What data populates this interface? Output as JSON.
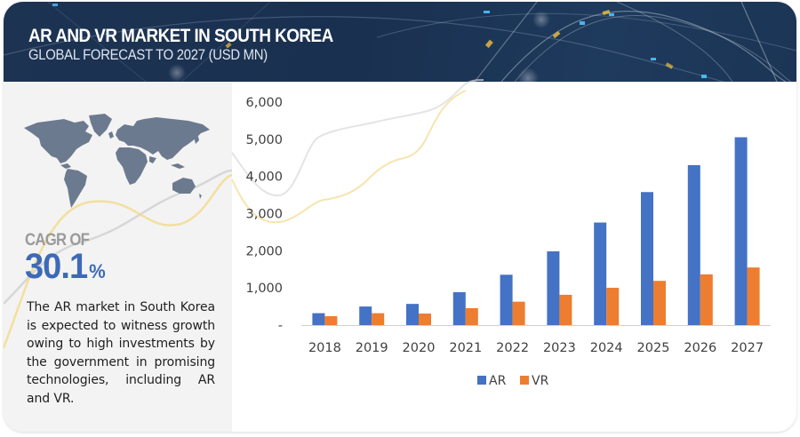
{
  "header": {
    "title": "AR AND VR MARKET IN SOUTH KOREA",
    "subtitle": "GLOBAL FORECAST TO 2027 (USD MN)"
  },
  "left_panel": {
    "map_icon": "world-map-icon",
    "cagr_label": "CAGR OF",
    "cagr_value": "30.1",
    "cagr_unit": "%",
    "description": "The AR market in South Korea is expected to witness growth owing to high investments by the government in promising technologies, including AR and VR."
  },
  "colors": {
    "header_bg": "#1d3352",
    "accent_blue": "#3d6ab8",
    "ar": "#4472c4",
    "vr": "#ed7d31",
    "panel_bg": "#f3f3f3"
  },
  "chart_data": {
    "type": "bar",
    "title": "",
    "xlabel": "",
    "ylabel": "",
    "categories": [
      "2018",
      "2019",
      "2020",
      "2021",
      "2022",
      "2023",
      "2024",
      "2025",
      "2026",
      "2027"
    ],
    "series": [
      {
        "name": "AR",
        "color": "#4472c4",
        "values": [
          320,
          500,
          570,
          885,
          1355,
          1985,
          2760,
          3580,
          4305,
          5055
        ]
      },
      {
        "name": "VR",
        "color": "#ed7d31",
        "values": [
          240,
          320,
          310,
          455,
          630,
          815,
          1005,
          1190,
          1365,
          1550
        ]
      }
    ],
    "ylim": [
      0,
      6000
    ],
    "yticks": [
      0,
      1000,
      2000,
      3000,
      4000,
      5000,
      6000
    ],
    "ytick_labels": [
      "-",
      "1,000",
      "2,000",
      "3,000",
      "4,000",
      "5,000",
      "6,000"
    ],
    "grid": false,
    "legend": {
      "position": "bottom",
      "entries": [
        "AR",
        "VR"
      ]
    }
  }
}
